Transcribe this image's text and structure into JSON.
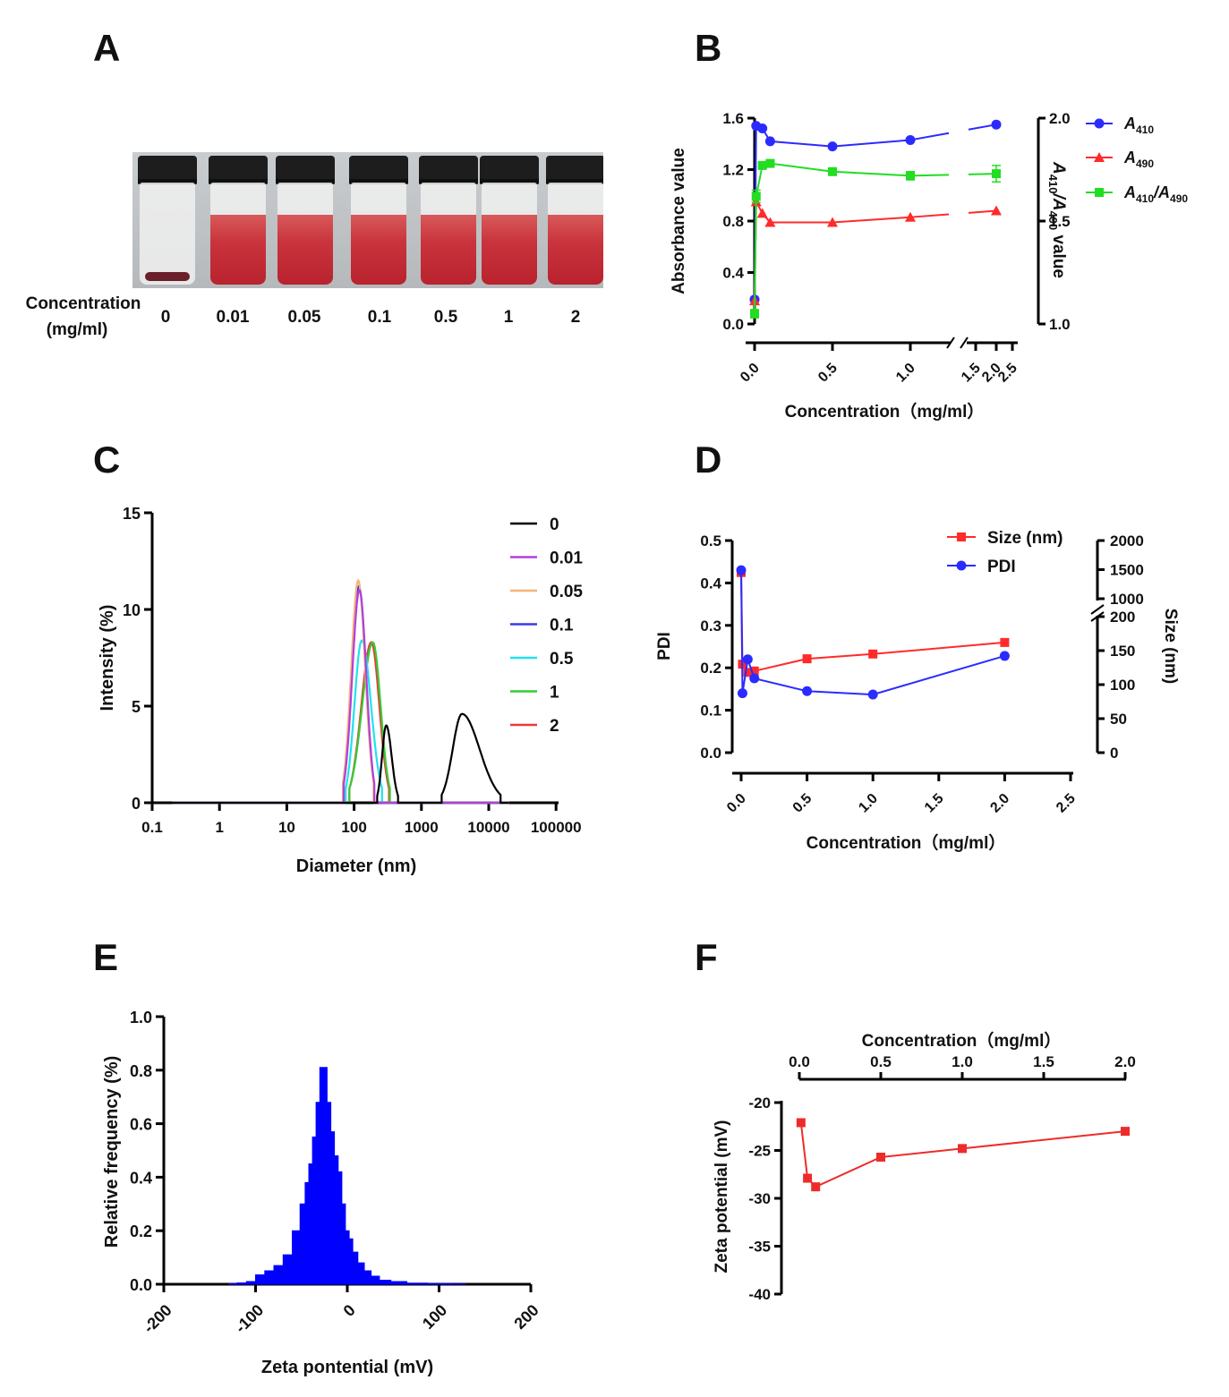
{
  "panels": {
    "A": "A",
    "B": "B",
    "C": "C",
    "D": "D",
    "E": "E",
    "F": "F"
  },
  "panel_a": {
    "label_line1": "Concentration",
    "label_line2": "(mg/ml)",
    "concentrations": [
      "0",
      "0.01",
      "0.05",
      "0.1",
      "0.5",
      "1",
      "2"
    ],
    "liquid_color": "#c9333c"
  },
  "chart_data": [
    {
      "panel": "B",
      "type": "line",
      "xlabel": "Concentration（mg/ml）",
      "ylabel": "Absorbance value",
      "y2label": "A410/A490 value",
      "xticks": [
        "0.0",
        "0.5",
        "1.0",
        "1.5",
        "2.0",
        "2.5"
      ],
      "yticks": [
        "0.0",
        "0.4",
        "0.8",
        "1.2",
        "1.6"
      ],
      "y2ticks": [
        "1.0",
        "1.5",
        "2.0"
      ],
      "xlim": [
        0,
        2.5
      ],
      "x_axis_break": [
        1.2,
        1.4
      ],
      "ylim": [
        0,
        1.6
      ],
      "y2lim": [
        1.0,
        2.0
      ],
      "series": [
        {
          "name": "A410",
          "legend_main": "A",
          "legend_sub": "410",
          "color": "#2b2bff",
          "marker": "circle",
          "axis": "left",
          "x": [
            0,
            0.01,
            0.05,
            0.1,
            0.5,
            1.0,
            2.0
          ],
          "values": [
            0.19,
            1.54,
            1.52,
            1.42,
            1.38,
            1.43,
            1.55
          ]
        },
        {
          "name": "A490",
          "legend_main": "A",
          "legend_sub": "490",
          "color": "#ff2b2b",
          "marker": "triangle",
          "axis": "left",
          "x": [
            0,
            0.01,
            0.05,
            0.1,
            0.5,
            1.0,
            2.0
          ],
          "values": [
            0.18,
            0.95,
            0.86,
            0.79,
            0.79,
            0.83,
            0.88
          ]
        },
        {
          "name": "A410/A490",
          "legend_main": "A",
          "legend_sub": "410",
          "legend_main2": "/A",
          "legend_sub2": "490",
          "color": "#22dd22",
          "marker": "square",
          "axis": "right",
          "x": [
            0,
            0.01,
            0.05,
            0.1,
            0.5,
            1.0,
            2.0
          ],
          "values": [
            1.05,
            1.62,
            1.77,
            1.78,
            1.74,
            1.72,
            1.73
          ],
          "errors": [
            0.02,
            0.03,
            0.01,
            0.01,
            0.01,
            0.02,
            0.04
          ]
        }
      ]
    },
    {
      "panel": "C",
      "type": "line",
      "xlabel": "Diameter (nm)",
      "ylabel": "Intensity (%)",
      "xscale": "log",
      "xticks": [
        "0.1",
        "1",
        "10",
        "100",
        "1000",
        "10000",
        "100000"
      ],
      "yticks": [
        "0",
        "5",
        "10",
        "15"
      ],
      "xlim": [
        0.1,
        100000
      ],
      "ylim": [
        0,
        15
      ],
      "series": [
        {
          "name": "0",
          "color": "#000000",
          "peaks": [
            {
              "center": 300,
              "height": 4.0,
              "from": 220,
              "to": 450
            },
            {
              "center": 4000,
              "height": 4.6,
              "from": 2000,
              "to": 15000
            }
          ]
        },
        {
          "name": "0.01",
          "color": "#b13fe0",
          "peaks": [
            {
              "center": 120,
              "height": 11.0,
              "from": 70,
              "to": 200
            }
          ]
        },
        {
          "name": "0.05",
          "color": "#f5b37a",
          "peaks": [
            {
              "center": 115,
              "height": 11.5,
              "from": 68,
              "to": 195
            }
          ]
        },
        {
          "name": "0.1",
          "color": "#3a3ae8",
          "peaks": [
            {
              "center": 118,
              "height": 11.2,
              "from": 70,
              "to": 198
            }
          ]
        },
        {
          "name": "0.5",
          "color": "#22e0ee",
          "peaks": [
            {
              "center": 130,
              "height": 8.4,
              "from": 75,
              "to": 260
            }
          ]
        },
        {
          "name": "1",
          "color": "#33cc33",
          "peaks": [
            {
              "center": 190,
              "height": 8.3,
              "from": 85,
              "to": 340
            }
          ]
        },
        {
          "name": "2",
          "color": "#e83a3a",
          "peaks": [
            {
              "center": 180,
              "height": 8.3,
              "from": 85,
              "to": 330
            }
          ]
        }
      ]
    },
    {
      "panel": "D",
      "type": "line",
      "xlabel": "Concentration（mg/ml）",
      "ylabel": "PDI",
      "y2label": "Size (nm)",
      "xticks": [
        "0.0",
        "0.5",
        "1.0",
        "1.5",
        "2.0",
        "2.5"
      ],
      "yticks": [
        "0.0",
        "0.1",
        "0.2",
        "0.3",
        "0.4",
        "0.5"
      ],
      "y2ticks": [
        "0",
        "50",
        "100",
        "150",
        "200",
        "1000",
        "1500",
        "2000"
      ],
      "xlim": [
        0,
        2.5
      ],
      "ylim": [
        0,
        0.5
      ],
      "series": [
        {
          "name": "Size (nm)",
          "color": "#ff2b2b",
          "marker": "square",
          "axis": "right",
          "x": [
            0,
            0.01,
            0.05,
            0.1,
            0.5,
            1.0,
            2.0
          ],
          "values": [
            1450,
            130,
            118,
            120,
            138,
            145,
            162
          ]
        },
        {
          "name": "PDI",
          "color": "#2b2bff",
          "marker": "circle",
          "axis": "left",
          "x": [
            0,
            0.01,
            0.05,
            0.1,
            0.5,
            1.0,
            2.0
          ],
          "values": [
            0.43,
            0.14,
            0.22,
            0.175,
            0.145,
            0.137,
            0.228
          ]
        }
      ]
    },
    {
      "panel": "E",
      "type": "bar",
      "xlabel": "Zeta pontential (mV)",
      "ylabel": "Relative frequency (%)",
      "xticks": [
        "-200",
        "-100",
        "0",
        "100",
        "200"
      ],
      "yticks": [
        "0.0",
        "0.2",
        "0.4",
        "0.6",
        "0.8",
        "1.0"
      ],
      "xlim": [
        -200,
        200
      ],
      "ylim": [
        0,
        1.0
      ],
      "color": "#0000ff",
      "histogram": {
        "x": [
          -125,
          -115,
          -105,
          -95,
          -85,
          -75,
          -65,
          -55,
          -48,
          -44,
          -40,
          -36,
          -32,
          -28,
          -24,
          -20,
          -16,
          -12,
          -8,
          -4,
          0,
          4,
          8,
          15,
          22,
          30,
          40,
          55,
          75,
          100,
          125
        ],
        "values": [
          0.002,
          0.005,
          0.01,
          0.035,
          0.05,
          0.07,
          0.11,
          0.2,
          0.3,
          0.38,
          0.45,
          0.55,
          0.68,
          0.81,
          0.81,
          0.68,
          0.57,
          0.48,
          0.42,
          0.3,
          0.2,
          0.17,
          0.12,
          0.08,
          0.05,
          0.03,
          0.015,
          0.01,
          0.004,
          0.002,
          0.001
        ]
      }
    },
    {
      "panel": "F",
      "type": "line",
      "xlabel": "Concentration（mg/ml）",
      "ylabel": "Zeta potential (mV)",
      "xticks": [
        "0.0",
        "0.5",
        "1.0",
        "1.5",
        "2.0"
      ],
      "yticks": [
        "-20",
        "-25",
        "-30",
        "-35",
        "-40"
      ],
      "xlim": [
        0,
        2.0
      ],
      "ylim": [
        -40,
        -20
      ],
      "series": [
        {
          "name": "Zeta potential",
          "color": "#ee2b2b",
          "marker": "square",
          "x": [
            0.01,
            0.05,
            0.1,
            0.5,
            1.0,
            2.0
          ],
          "values": [
            -22.1,
            -27.9,
            -28.8,
            -25.7,
            -24.8,
            -23.0
          ]
        }
      ]
    }
  ]
}
